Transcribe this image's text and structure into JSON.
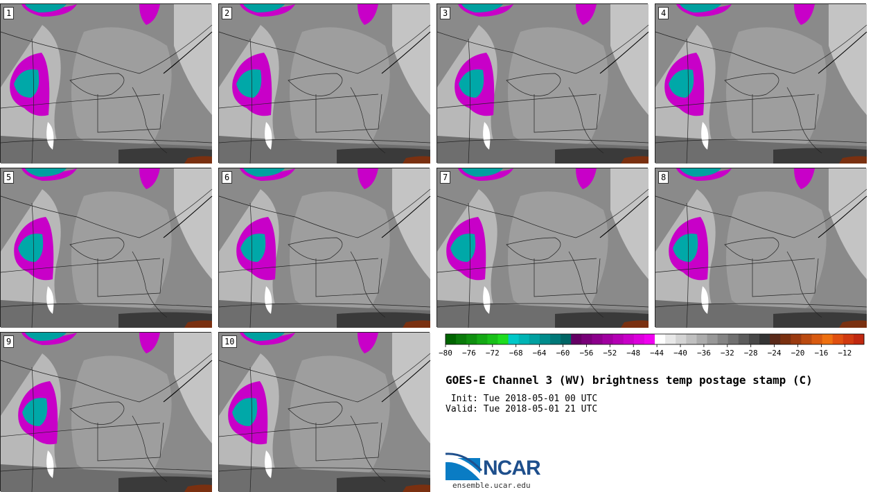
{
  "panels": [
    {
      "label": "1"
    },
    {
      "label": "2"
    },
    {
      "label": "3"
    },
    {
      "label": "4"
    },
    {
      "label": "5"
    },
    {
      "label": "6"
    },
    {
      "label": "7"
    },
    {
      "label": "8"
    },
    {
      "label": "9"
    },
    {
      "label": "10"
    }
  ],
  "colorbar": {
    "ticks": [
      "−80",
      "−76",
      "−72",
      "−68",
      "−64",
      "−60",
      "−56",
      "−52",
      "−48",
      "−44",
      "−40",
      "−36",
      "−32",
      "−28",
      "−24",
      "−20",
      "−16",
      "−12"
    ],
    "colors": [
      "#006400",
      "#0a7a0a",
      "#0f8f0f",
      "#14a814",
      "#19c019",
      "#1fdc1f",
      "#00c8c8",
      "#00b4b4",
      "#00a0a0",
      "#008c8c",
      "#007878",
      "#006464",
      "#640064",
      "#780078",
      "#8c008c",
      "#a000a0",
      "#b400b4",
      "#c800c8",
      "#dc00dc",
      "#f000f0",
      "#ffffff",
      "#e8e8e8",
      "#d4d4d4",
      "#c0c0c0",
      "#acacac",
      "#989898",
      "#848484",
      "#707070",
      "#5c5c5c",
      "#484848",
      "#343434",
      "#5a2a1a",
      "#7a3010",
      "#9a3a10",
      "#ba4a10",
      "#d85a10",
      "#ee7010",
      "#e05010",
      "#d03a10",
      "#c02810"
    ]
  },
  "title": "GOES-E Channel 3 (WV) brightness temp postage stamp (C)",
  "init_line": " Init: Tue 2018-05-01 00 UTC",
  "valid_line": "Valid: Tue 2018-05-01 21 UTC",
  "logo": {
    "text": "NCAR",
    "url": "ensemble.ucar.edu"
  }
}
